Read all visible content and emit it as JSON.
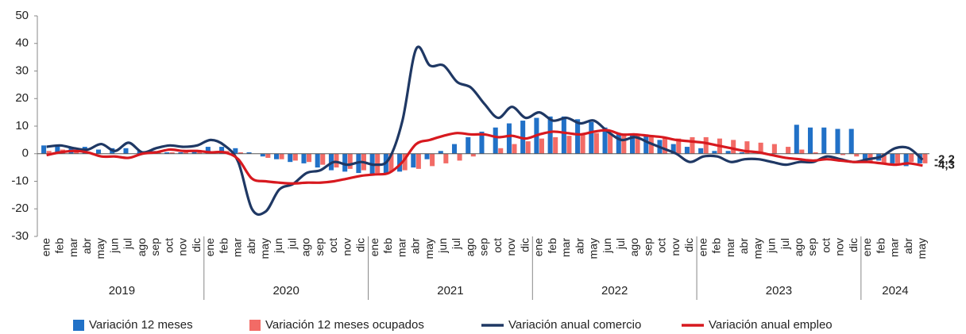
{
  "chart_data": {
    "type": "bar_line",
    "categories": [
      "ene",
      "feb",
      "mar",
      "abr",
      "may",
      "jun",
      "jul",
      "ago",
      "sep",
      "oct",
      "nov",
      "dic",
      "ene",
      "feb",
      "mar",
      "abr",
      "may",
      "jun",
      "jul",
      "ago",
      "sep",
      "oct",
      "nov",
      "dic",
      "ene",
      "feb",
      "mar",
      "abr",
      "may",
      "jun",
      "jul",
      "ago",
      "sep",
      "oct",
      "nov",
      "dic",
      "ene",
      "feb",
      "mar",
      "abr",
      "may",
      "jun",
      "jul",
      "ago",
      "sep",
      "oct",
      "nov",
      "dic",
      "ene",
      "feb",
      "mar",
      "abr",
      "may",
      "jun",
      "jul",
      "ago",
      "sep",
      "oct",
      "nov",
      "dic",
      "ene",
      "feb",
      "mar",
      "abr",
      "may"
    ],
    "years": [
      "2019",
      "2020",
      "2021",
      "2022",
      "2023",
      "2024"
    ],
    "ylim": [
      -30,
      50
    ],
    "yticks": [
      -30,
      -20,
      -10,
      0,
      10,
      20,
      30,
      40,
      50
    ],
    "series": [
      {
        "name": "Variación 12 meses",
        "kind": "bar",
        "color": "#2171c7",
        "values": [
          3,
          3,
          2.5,
          2.5,
          1.5,
          2,
          2,
          1,
          1,
          0.5,
          0.5,
          1,
          2.5,
          2.5,
          2,
          0.5,
          -1,
          -2,
          -3,
          -3.5,
          -5,
          -6,
          -6.5,
          -7,
          -7.5,
          -7,
          -6.5,
          -5,
          -2,
          1,
          3.5,
          6,
          8,
          9.5,
          11,
          12,
          13,
          13.5,
          13.5,
          12.5,
          11.5,
          9.5,
          7.5,
          7,
          6.5,
          5,
          3.5,
          2.5,
          2,
          1,
          1,
          0.5,
          0,
          0,
          0,
          10.5,
          9.5,
          9.5,
          9,
          9,
          -3,
          -2.5,
          -3.5,
          -4.5,
          -3.5
        ]
      },
      {
        "name": "Variación 12 meses ocupados",
        "kind": "bar",
        "color": "#f26b66",
        "values": [
          1,
          1.5,
          1,
          0.5,
          0,
          0,
          0,
          0.5,
          0.5,
          0.5,
          0.5,
          0.5,
          0.5,
          1,
          0.5,
          0,
          -1.5,
          -2,
          -2.5,
          -3,
          -4,
          -5,
          -5.5,
          -6,
          -7,
          -6.5,
          -6,
          -5.5,
          -4.5,
          -3.5,
          -2.5,
          -1,
          0,
          2,
          3.5,
          4.5,
          5.5,
          6,
          6.5,
          7,
          7.5,
          7.5,
          7,
          7,
          6.5,
          6,
          5.5,
          6,
          6,
          5.5,
          5,
          4.5,
          4,
          3.5,
          2.5,
          1.5,
          0.5,
          0,
          -0.5,
          -1,
          -3,
          -3.5,
          -3.5,
          -3,
          -3.5
        ]
      },
      {
        "name": "Variación anual comercio",
        "kind": "line",
        "color": "#1f3864",
        "values": [
          2.5,
          3,
          2,
          1.5,
          3.5,
          1,
          4,
          0.5,
          2,
          3,
          2.5,
          3,
          5,
          3,
          -3,
          -20,
          -21,
          -13,
          -11,
          -7,
          -6,
          -3,
          -4,
          -3,
          -4,
          -2,
          12,
          38,
          32,
          32,
          26,
          24,
          18,
          13,
          17,
          13,
          15,
          12,
          13,
          11,
          12,
          8,
          5,
          6,
          4,
          2,
          0,
          -3,
          -1,
          -1,
          -3,
          -2,
          -2,
          -3,
          -4,
          -3,
          -3,
          -1,
          -2,
          -3,
          -2,
          -1,
          2,
          2,
          -2.2
        ],
        "value_labels": [
          null,
          null,
          null,
          null,
          null,
          null,
          null,
          null,
          null,
          null,
          null,
          null,
          null,
          null,
          null,
          null,
          null,
          null,
          null,
          null,
          null,
          null,
          null,
          null,
          null,
          null,
          null,
          null,
          null,
          null,
          null,
          null,
          null,
          null,
          null,
          null,
          null,
          null,
          null,
          null,
          null,
          null,
          null,
          null,
          null,
          null,
          null,
          null,
          null,
          null,
          null,
          null,
          null,
          null,
          null,
          null,
          null,
          null,
          null,
          null,
          null,
          null,
          null,
          null,
          "-2,2"
        ]
      },
      {
        "name": "Variación anual empleo",
        "kind": "line",
        "color": "#d7191f",
        "values": [
          -0.5,
          0.5,
          1,
          0.5,
          -1,
          -1,
          -1.5,
          0,
          0.5,
          1.5,
          1,
          1,
          0.5,
          0.5,
          -2,
          -9,
          -10,
          -10.5,
          -10.8,
          -10.5,
          -10.5,
          -10,
          -9,
          -8,
          -7.5,
          -7,
          -3,
          3.5,
          5,
          6.5,
          7.5,
          7,
          7,
          6,
          6.5,
          5.5,
          7,
          8,
          7.5,
          7,
          8,
          8.5,
          7,
          7,
          6.5,
          6,
          5,
          4.5,
          4,
          3,
          2,
          1,
          0.5,
          -0.5,
          -1.5,
          -2,
          -2.5,
          -2,
          -2.5,
          -3,
          -3,
          -3.5,
          -4,
          -3.5,
          -4.3
        ],
        "value_labels": [
          null,
          null,
          null,
          null,
          null,
          null,
          null,
          null,
          null,
          null,
          null,
          null,
          null,
          null,
          null,
          null,
          null,
          null,
          null,
          null,
          null,
          null,
          null,
          null,
          null,
          null,
          null,
          null,
          null,
          null,
          null,
          null,
          null,
          null,
          null,
          null,
          null,
          null,
          null,
          null,
          null,
          null,
          null,
          null,
          null,
          null,
          null,
          null,
          null,
          null,
          null,
          null,
          null,
          null,
          null,
          null,
          null,
          null,
          null,
          null,
          null,
          null,
          null,
          null,
          "-4,3"
        ]
      }
    ]
  }
}
